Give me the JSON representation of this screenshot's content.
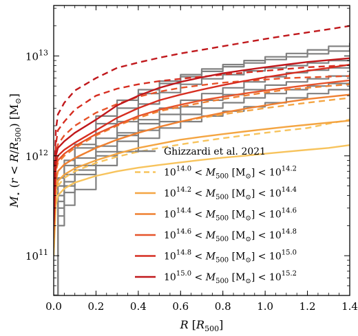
{
  "chart_data": {
    "type": "line",
    "xlabel": "R [R500]",
    "ylabel": "M⋆ (r < R/R500) [M⊙]",
    "xlim": [
      0.0,
      1.4
    ],
    "ylim": [
      40000000000.0,
      32000000000000.0
    ],
    "yscale": "log",
    "xticks": [
      "0.0",
      "0.2",
      "0.4",
      "0.6",
      "0.8",
      "1.0",
      "1.2",
      "1.4"
    ],
    "yticks": [
      {
        "value": 100000000000.0,
        "base": "10",
        "exp": "11"
      },
      {
        "value": 1000000000000.0,
        "base": "10",
        "exp": "12"
      },
      {
        "value": 10000000000000.0,
        "base": "10",
        "exp": "13"
      }
    ],
    "legend_position": "lower-right",
    "legend": [
      {
        "label": "Ghizzardi et al. 2021",
        "color": "#808080",
        "style": "solid"
      },
      {
        "label_parts": [
          "10",
          "14.0",
          " < M",
          "500",
          " [M",
          "⊙",
          "] < 10",
          "14.2"
        ],
        "color": "#f7c35c",
        "style": "dashed"
      },
      {
        "label_parts": [
          "10",
          "14.2",
          " < M",
          "500",
          " [M",
          "⊙",
          "] < 10",
          "14.4"
        ],
        "color": "#f4a542",
        "style": "solid"
      },
      {
        "label_parts": [
          "10",
          "14.4",
          " < M",
          "500",
          " [M",
          "⊙",
          "] < 10",
          "14.6"
        ],
        "color": "#ef8031",
        "style": "solid"
      },
      {
        "label_parts": [
          "10",
          "14.6",
          " < M",
          "500",
          " [M",
          "⊙",
          "] < 10",
          "14.8"
        ],
        "color": "#e6532a",
        "style": "solid"
      },
      {
        "label_parts": [
          "10",
          "14.8",
          " < M",
          "500",
          " [M",
          "⊙",
          "] < 10",
          "15.0"
        ],
        "color": "#d62d20",
        "style": "solid"
      },
      {
        "label_parts": [
          "10",
          "15.0",
          " < M",
          "500",
          " [M",
          "⊙",
          "] < 10",
          "15.2"
        ],
        "color": "#c0171b",
        "style": "solid"
      }
    ],
    "series": [
      {
        "group": "observed",
        "color": "#808080",
        "dash": "solid",
        "x": [
          0.0,
          0.02,
          0.05,
          0.1,
          0.2,
          0.3,
          0.4,
          0.5,
          0.6,
          0.7,
          0.8,
          0.9,
          1.0,
          1.1,
          1.2,
          1.3,
          1.4
        ],
        "y": [
          40000000000.0,
          600000000000.0,
          900000000000.0,
          1300000000000.0,
          2500000000000.0,
          3600000000000.0,
          4600000000000.0,
          5600000000000.0,
          6500000000000.0,
          7400000000000.0,
          8200000000000.0,
          9000000000000.0,
          9800000000000.0,
          10600000000000.0,
          11500000000000.0,
          12500000000000.0,
          13500000000000.0
        ]
      },
      {
        "group": "observed",
        "color": "#808080",
        "dash": "solid",
        "x": [
          0.0,
          0.02,
          0.05,
          0.1,
          0.2,
          0.3,
          0.4,
          0.5,
          0.6,
          0.7,
          0.8,
          0.9,
          1.0,
          1.1,
          1.2,
          1.3,
          1.4
        ],
        "y": [
          40000000000.0,
          500000000000.0,
          800000000000.0,
          1200000000000.0,
          2100000000000.0,
          3000000000000.0,
          4200000000000.0,
          5300000000000.0,
          6200000000000.0,
          7000000000000.0,
          7800000000000.0,
          8500000000000.0,
          9200000000000.0,
          9800000000000.0,
          10500000000000.0,
          11200000000000.0,
          12000000000000.0
        ]
      },
      {
        "group": "observed",
        "color": "#808080",
        "dash": "solid",
        "x": [
          0.0,
          0.02,
          0.05,
          0.1,
          0.2,
          0.3,
          0.4,
          0.5,
          0.6,
          0.7,
          0.8,
          0.9,
          1.0,
          1.1,
          1.2,
          1.3,
          1.4
        ],
        "y": [
          40000000000.0,
          400000000000.0,
          650000000000.0,
          950000000000.0,
          1500000000000.0,
          2200000000000.0,
          3300000000000.0,
          4300000000000.0,
          5200000000000.0,
          5900000000000.0,
          6500000000000.0,
          7100000000000.0,
          7600000000000.0,
          8000000000000.0,
          8500000000000.0,
          9000000000000.0,
          9600000000000.0
        ]
      },
      {
        "group": "observed",
        "color": "#808080",
        "dash": "solid",
        "x": [
          0.0,
          0.02,
          0.05,
          0.1,
          0.2,
          0.3,
          0.4,
          0.5,
          0.6,
          0.7,
          0.8,
          0.9,
          1.0,
          1.1,
          1.2,
          1.3,
          1.4
        ],
        "y": [
          40000000000.0,
          350000000000.0,
          550000000000.0,
          800000000000.0,
          1250000000000.0,
          1700000000000.0,
          2300000000000.0,
          3000000000000.0,
          3600000000000.0,
          4200000000000.0,
          4800000000000.0,
          5500000000000.0,
          6200000000000.0,
          6800000000000.0,
          7200000000000.0,
          7600000000000.0,
          8000000000000.0
        ]
      },
      {
        "group": "observed",
        "color": "#808080",
        "dash": "solid",
        "x": [
          0.0,
          0.02,
          0.05,
          0.1,
          0.2,
          0.3,
          0.4,
          0.5,
          0.6,
          0.7,
          0.8,
          0.9,
          1.0,
          1.1,
          1.2,
          1.3,
          1.4
        ],
        "y": [
          40000000000.0,
          300000000000.0,
          500000000000.0,
          720000000000.0,
          1100000000000.0,
          1600000000000.0,
          2100000000000.0,
          2600000000000.0,
          3100000000000.0,
          3600000000000.0,
          4100000000000.0,
          4600000000000.0,
          5100000000000.0,
          5500000000000.0,
          5900000000000.0,
          6300000000000.0,
          6700000000000.0
        ]
      },
      {
        "group": "observed",
        "color": "#808080",
        "dash": "solid",
        "x": [
          0.0,
          0.02,
          0.05,
          0.1,
          0.2,
          0.3,
          0.4,
          0.5,
          0.6,
          0.7,
          0.8,
          0.9,
          1.0,
          1.1,
          1.2,
          1.3,
          1.4
        ],
        "y": [
          40000000000.0,
          250000000000.0,
          430000000000.0,
          650000000000.0,
          1000000000000.0,
          1400000000000.0,
          1800000000000.0,
          2200000000000.0,
          2600000000000.0,
          3000000000000.0,
          3400000000000.0,
          3800000000000.0,
          4200000000000.0,
          4600000000000.0,
          5000000000000.0,
          5300000000000.0,
          5600000000000.0
        ]
      },
      {
        "group": "observed",
        "color": "#808080",
        "dash": "solid",
        "x": [
          0.0,
          0.02,
          0.05,
          0.1,
          0.2,
          0.3,
          0.4,
          0.5,
          0.6,
          0.7,
          0.8,
          0.9,
          1.0,
          1.1,
          1.2,
          1.3,
          1.4
        ],
        "y": [
          40000000000.0,
          200000000000.0,
          320000000000.0,
          460000000000.0,
          800000000000.0,
          1100000000000.0,
          1500000000000.0,
          1900000000000.0,
          2200000000000.0,
          2500000000000.0,
          2800000000000.0,
          3100000000000.0,
          3400000000000.0,
          3800000000000.0,
          4200000000000.0,
          4600000000000.0,
          5000000000000.0
        ]
      },
      {
        "group": "model",
        "color": "#f7c35c",
        "dash": "dashed",
        "x": [
          0.0,
          0.01,
          0.02,
          0.05,
          0.1,
          0.2,
          0.3,
          0.4,
          0.5,
          0.6,
          0.7,
          0.8,
          0.9,
          1.0,
          1.1,
          1.2,
          1.3,
          1.4
        ],
        "y": [
          120000000000.0,
          400000000000.0,
          500000000000.0,
          600000000000.0,
          700000000000.0,
          850000000000.0,
          980000000000.0,
          1100000000000.0,
          1200000000000.0,
          1300000000000.0,
          1400000000000.0,
          1500000000000.0,
          1600000000000.0,
          1700000000000.0,
          1800000000000.0,
          1900000000000.0,
          2100000000000.0,
          2300000000000.0
        ]
      },
      {
        "group": "model",
        "color": "#f7c35c",
        "dash": "solid",
        "x": [
          0.0,
          0.01,
          0.02,
          0.05,
          0.1,
          0.2,
          0.3,
          0.4,
          0.5,
          0.6,
          0.7,
          0.8,
          0.9,
          1.0,
          1.1,
          1.2,
          1.3,
          1.4
        ],
        "y": [
          100000000000.0,
          320000000000.0,
          400000000000.0,
          470000000000.0,
          540000000000.0,
          630000000000.0,
          700000000000.0,
          760000000000.0,
          810000000000.0,
          860000000000.0,
          910000000000.0,
          960000000000.0,
          1000000000000.0,
          1050000000000.0,
          1100000000000.0,
          1150000000000.0,
          1200000000000.0,
          1280000000000.0
        ]
      },
      {
        "group": "model",
        "color": "#f4a542",
        "dash": "dashed",
        "x": [
          0.0,
          0.01,
          0.02,
          0.05,
          0.1,
          0.2,
          0.3,
          0.4,
          0.5,
          0.6,
          0.7,
          0.8,
          0.9,
          1.0,
          1.1,
          1.2,
          1.3,
          1.4
        ],
        "y": [
          150000000000.0,
          550000000000.0,
          700000000000.0,
          820000000000.0,
          950000000000.0,
          1200000000000.0,
          1450000000000.0,
          1700000000000.0,
          1950000000000.0,
          2200000000000.0,
          2400000000000.0,
          2600000000000.0,
          2800000000000.0,
          3000000000000.0,
          3200000000000.0,
          3400000000000.0,
          3600000000000.0,
          3800000000000.0
        ]
      },
      {
        "group": "model",
        "color": "#f4a542",
        "dash": "solid",
        "x": [
          0.0,
          0.01,
          0.02,
          0.05,
          0.1,
          0.2,
          0.3,
          0.4,
          0.5,
          0.6,
          0.7,
          0.8,
          0.9,
          1.0,
          1.1,
          1.2,
          1.3,
          1.4
        ],
        "y": [
          120000000000.0,
          450000000000.0,
          560000000000.0,
          650000000000.0,
          750000000000.0,
          900000000000.0,
          1050000000000.0,
          1200000000000.0,
          1320000000000.0,
          1450000000000.0,
          1550000000000.0,
          1650000000000.0,
          1750000000000.0,
          1850000000000.0,
          1950000000000.0,
          2050000000000.0,
          2150000000000.0,
          2250000000000.0
        ]
      },
      {
        "group": "model",
        "color": "#ef8031",
        "dash": "dashed",
        "x": [
          0.0,
          0.01,
          0.02,
          0.05,
          0.1,
          0.2,
          0.3,
          0.4,
          0.5,
          0.6,
          0.7,
          0.8,
          0.9,
          1.0,
          1.1,
          1.2,
          1.3,
          1.4
        ],
        "y": [
          180000000000.0,
          700000000000.0,
          850000000000.0,
          1000000000000.0,
          1200000000000.0,
          1600000000000.0,
          2000000000000.0,
          2400000000000.0,
          2800000000000.0,
          3100000000000.0,
          3400000000000.0,
          3700000000000.0,
          4000000000000.0,
          4300000000000.0,
          4600000000000.0,
          4800000000000.0,
          5000000000000.0,
          5200000000000.0
        ]
      },
      {
        "group": "model",
        "color": "#ef8031",
        "dash": "solid",
        "x": [
          0.0,
          0.01,
          0.02,
          0.05,
          0.1,
          0.2,
          0.3,
          0.4,
          0.5,
          0.6,
          0.7,
          0.8,
          0.9,
          1.0,
          1.1,
          1.2,
          1.3,
          1.4
        ],
        "y": [
          150000000000.0,
          550000000000.0,
          700000000000.0,
          820000000000.0,
          950000000000.0,
          1200000000000.0,
          1450000000000.0,
          1700000000000.0,
          1950000000000.0,
          2200000000000.0,
          2450000000000.0,
          2700000000000.0,
          2950000000000.0,
          3200000000000.0,
          3450000000000.0,
          3700000000000.0,
          3900000000000.0,
          4100000000000.0
        ]
      },
      {
        "group": "model",
        "color": "#e6532a",
        "dash": "dashed",
        "x": [
          0.0,
          0.01,
          0.02,
          0.05,
          0.1,
          0.2,
          0.3,
          0.4,
          0.5,
          0.6,
          0.7,
          0.8,
          0.9,
          1.0,
          1.1,
          1.2,
          1.3,
          1.4
        ],
        "y": [
          220000000000.0,
          1000000000000.0,
          1300000000000.0,
          1600000000000.0,
          2000000000000.0,
          2700000000000.0,
          3300000000000.0,
          3900000000000.0,
          4400000000000.0,
          4800000000000.0,
          5100000000000.0,
          5400000000000.0,
          5600000000000.0,
          5800000000000.0,
          6000000000000.0,
          6100000000000.0,
          6200000000000.0,
          6300000000000.0
        ]
      },
      {
        "group": "model",
        "color": "#e6532a",
        "dash": "solid",
        "x": [
          0.0,
          0.01,
          0.02,
          0.05,
          0.1,
          0.2,
          0.3,
          0.4,
          0.5,
          0.6,
          0.7,
          0.8,
          0.9,
          1.0,
          1.1,
          1.2,
          1.3,
          1.4
        ],
        "y": [
          180000000000.0,
          750000000000.0,
          900000000000.0,
          1050000000000.0,
          1250000000000.0,
          1650000000000.0,
          2050000000000.0,
          2500000000000.0,
          2900000000000.0,
          3250000000000.0,
          3600000000000.0,
          3900000000000.0,
          4200000000000.0,
          4500000000000.0,
          4800000000000.0,
          5100000000000.0,
          5400000000000.0,
          5700000000000.0
        ]
      },
      {
        "group": "model",
        "color": "#d62d20",
        "dash": "dashed",
        "x": [
          0.0,
          0.01,
          0.02,
          0.05,
          0.1,
          0.2,
          0.3,
          0.4,
          0.5,
          0.6,
          0.7,
          0.8,
          0.9,
          1.0,
          1.1,
          1.2,
          1.3,
          1.4
        ],
        "y": [
          260000000000.0,
          1300000000000.0,
          1800000000000.0,
          2200000000000.0,
          2900000000000.0,
          4000000000000.0,
          4700000000000.0,
          5200000000000.0,
          5600000000000.0,
          5900000000000.0,
          6200000000000.0,
          6500000000000.0,
          6800000000000.0,
          7100000000000.0,
          7400000000000.0,
          7700000000000.0,
          7900000000000.0,
          8100000000000.0
        ]
      },
      {
        "group": "model",
        "color": "#d62d20",
        "dash": "solid",
        "x": [
          0.0,
          0.01,
          0.02,
          0.05,
          0.1,
          0.2,
          0.3,
          0.4,
          0.5,
          0.6,
          0.7,
          0.8,
          0.9,
          1.0,
          1.1,
          1.2,
          1.3,
          1.4
        ],
        "y": [
          200000000000.0,
          850000000000.0,
          1000000000000.0,
          1150000000000.0,
          1350000000000.0,
          1800000000000.0,
          2400000000000.0,
          3000000000000.0,
          3600000000000.0,
          4100000000000.0,
          4600000000000.0,
          5100000000000.0,
          5600000000000.0,
          6100000000000.0,
          6600000000000.0,
          7100000000000.0,
          7600000000000.0,
          8200000000000.0
        ]
      },
      {
        "group": "model",
        "color": "#c0171b",
        "dash": "dashed",
        "x": [
          0.0,
          0.01,
          0.02,
          0.05,
          0.1,
          0.2,
          0.3,
          0.4,
          0.5,
          0.6,
          0.7,
          0.8,
          0.9,
          1.0,
          1.1,
          1.2,
          1.3,
          1.4
        ],
        "y": [
          300000000000.0,
          1800000000000.0,
          2600000000000.0,
          3400000000000.0,
          4500000000000.0,
          6000000000000.0,
          7600000000000.0,
          8600000000000.0,
          9600000000000.0,
          10600000000000.0,
          11500000000000.0,
          12500000000000.0,
          13600000000000.0,
          14800000000000.0,
          16000000000000.0,
          17200000000000.0,
          18500000000000.0,
          20000000000000.0
        ]
      },
      {
        "group": "model",
        "color": "#c0171b",
        "dash": "solid",
        "x": [
          0.0,
          0.01,
          0.02,
          0.05,
          0.1,
          0.2,
          0.3,
          0.4,
          0.5,
          0.6,
          0.7,
          0.8,
          0.9,
          1.0,
          1.1,
          1.2,
          1.3,
          1.4
        ],
        "y": [
          220000000000.0,
          1000000000000.0,
          1200000000000.0,
          1400000000000.0,
          1700000000000.0,
          2300000000000.0,
          3200000000000.0,
          4000000000000.0,
          4800000000000.0,
          5500000000000.0,
          6100000000000.0,
          6700000000000.0,
          7200000000000.0,
          7700000000000.0,
          8200000000000.0,
          8700000000000.0,
          9100000000000.0,
          9500000000000.0
        ]
      }
    ]
  }
}
